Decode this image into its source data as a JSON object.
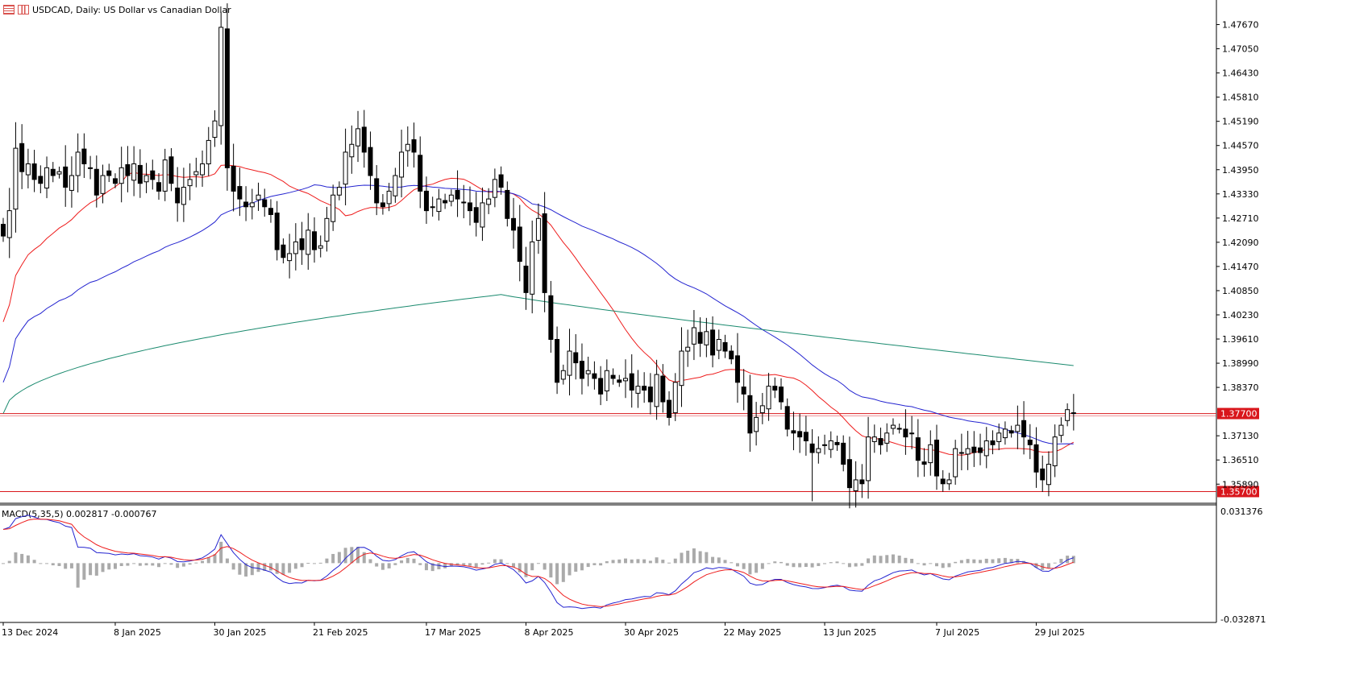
{
  "header": {
    "title": "USDCAD, Daily:  US Dollar vs Canadian Dollar",
    "icons": [
      "chart-list-icon",
      "chart-type-icon"
    ]
  },
  "chart_data": [
    {
      "type": "candlestick",
      "symbol": "USDCAD",
      "timeframe": "Daily",
      "title": "USDCAD, Daily:  US Dollar vs Canadian Dollar",
      "ylim": [
        1.354,
        1.483
      ],
      "y_ticks": [
        "1.47670",
        "1.47050",
        "1.46430",
        "1.45810",
        "1.45190",
        "1.44570",
        "1.43950",
        "1.43330",
        "1.42710",
        "1.42090",
        "1.41470",
        "1.40850",
        "1.40230",
        "1.39610",
        "1.38990",
        "1.38370",
        "1.37130",
        "1.36510",
        "1.35890"
      ],
      "x_ticks": [
        "13 Dec 2024",
        "8 Jan 2025",
        "30 Jan 2025",
        "21 Feb 2025",
        "17 Mar 2025",
        "8 Apr 2025",
        "30 Apr 2025",
        "22 May 2025",
        "13 Jun 2025",
        "7 Jul 2025",
        "29 Jul 2025"
      ],
      "x_tick_index": [
        0,
        18,
        34,
        50,
        68,
        84,
        100,
        116,
        132,
        150,
        166
      ],
      "close": [
        1.4225,
        1.429,
        1.445,
        1.439,
        1.441,
        1.437,
        1.436,
        1.44,
        1.438,
        1.439,
        1.435,
        1.438,
        1.444,
        1.441,
        1.44,
        1.433,
        1.438,
        1.438,
        1.436,
        1.44,
        1.438,
        1.441,
        1.436,
        1.438,
        1.437,
        1.434,
        1.442,
        1.436,
        1.431,
        1.435,
        1.437,
        1.439,
        1.441,
        1.447,
        1.452,
        1.476,
        1.44,
        1.434,
        1.432,
        1.43,
        1.431,
        1.433,
        1.43,
        1.428,
        1.419,
        1.417,
        1.418,
        1.421,
        1.419,
        1.424,
        1.419,
        1.42,
        1.427,
        1.433,
        1.435,
        1.444,
        1.446,
        1.45,
        1.444,
        1.438,
        1.431,
        1.43,
        1.434,
        1.438,
        1.444,
        1.446,
        1.444,
        1.434,
        1.429,
        1.43,
        1.432,
        1.431,
        1.433,
        1.432,
        1.431,
        1.429,
        1.426,
        1.431,
        1.432,
        1.437,
        1.435,
        1.427,
        1.424,
        1.416,
        1.408,
        1.421,
        1.427,
        1.408,
        1.396,
        1.385,
        1.388,
        1.393,
        1.39,
        1.386,
        1.388,
        1.386,
        1.382,
        1.388,
        1.386,
        1.385,
        1.386,
        1.383,
        1.384,
        1.383,
        1.38,
        1.387,
        1.38,
        1.376,
        1.385,
        1.393,
        1.394,
        1.399,
        1.395,
        1.398,
        1.392,
        1.396,
        1.393,
        1.391,
        1.385,
        1.382,
        1.372,
        1.376,
        1.379,
        1.384,
        1.383,
        1.38,
        1.373,
        1.372,
        1.371,
        1.37,
        1.367,
        1.368,
        1.369,
        1.37,
        1.369,
        1.364,
        1.358,
        1.36,
        1.359,
        1.371,
        1.371,
        1.369,
        1.372,
        1.374,
        1.373,
        1.371,
        1.372,
        1.365,
        1.364,
        1.369,
        1.361,
        1.359,
        1.36,
        1.368,
        1.367,
        1.368,
        1.367,
        1.367,
        1.37,
        1.369,
        1.372,
        1.373,
        1.372,
        1.374,
        1.371,
        1.369,
        1.362,
        1.36,
        1.364,
        1.371,
        1.374,
        1.378,
        1.377
      ],
      "current_price_label": "1.37700",
      "horizontal_levels": [
        {
          "value": 1.377,
          "label": "1.37700",
          "color": "#d9161c"
        },
        {
          "value": 1.357,
          "label": "1.35700",
          "color": "#d9161c"
        }
      ],
      "moving_averages": [
        {
          "period": 20,
          "color": "#ee1c1c"
        },
        {
          "period": 50,
          "color": "#2424d0"
        },
        {
          "period": 200,
          "color": "#1a8a6e"
        }
      ]
    },
    {
      "type": "line",
      "indicator": "MACD(5,35,5)",
      "label": "MACD(5,35,5) 0.002817 -0.000767",
      "ylim": [
        -0.032871,
        0.031376
      ],
      "y_ticks": [
        "0.031376",
        "-0.032871"
      ],
      "series": [
        {
          "color": "#2424d0"
        },
        {
          "color": "#ee1c1c"
        },
        {
          "color": "#aaaaaa"
        }
      ]
    }
  ]
}
